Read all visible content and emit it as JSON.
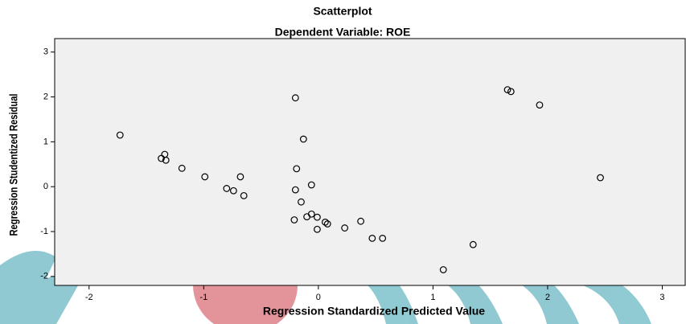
{
  "chart_data": {
    "type": "scatter",
    "title": "Scatterplot",
    "subtitle": "Dependent Variable: ROE",
    "x_label": "Regression Standardized Predicted Value",
    "y_label": "Regression Studentized Residual",
    "color": "#000000",
    "xlim": [
      -2.3,
      3.2
    ],
    "ylim": [
      -2.2,
      3.3
    ],
    "xticks": [
      -2,
      -1,
      0,
      1,
      2,
      3
    ],
    "yticks": [
      -2,
      -1,
      0,
      1,
      2,
      3
    ],
    "grid": false,
    "x": [
      -1.73,
      -1.34,
      -1.37,
      -1.33,
      -1.19,
      -0.99,
      -0.68,
      -0.8,
      -0.74,
      -0.65,
      -0.2,
      -0.13,
      -0.19,
      -0.2,
      -0.06,
      -0.15,
      -0.21,
      -0.1,
      -0.06,
      -0.01,
      0.06,
      0.08,
      -0.01,
      0.23,
      0.37,
      0.47,
      0.56,
      1.09,
      1.35,
      1.65,
      1.68,
      1.93,
      2.46
    ],
    "values": [
      1.15,
      0.72,
      0.63,
      0.59,
      0.41,
      0.22,
      0.22,
      -0.04,
      -0.09,
      -0.2,
      1.98,
      1.06,
      0.4,
      -0.07,
      0.04,
      -0.34,
      -0.74,
      -0.67,
      -0.61,
      -0.68,
      -0.79,
      -0.83,
      -0.95,
      -0.92,
      -0.77,
      -1.15,
      -1.15,
      -1.85,
      -1.29,
      2.16,
      2.12,
      1.82,
      0.2
    ]
  }
}
